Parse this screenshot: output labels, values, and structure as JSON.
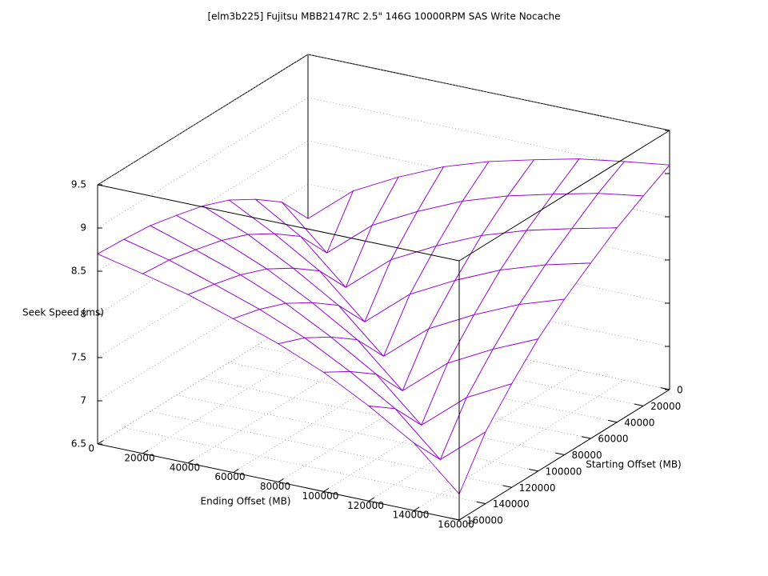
{
  "chart_data": {
    "type": "surface",
    "title": "[elm3b225] Fujitsu MBB2147RC 2.5\" 146G 10000RPM SAS Write Nocache",
    "xlabel": "Ending Offset (MB)",
    "ylabel": "Starting Offset (MB)",
    "zlabel": "Seek Speed (ms)",
    "x": [
      0,
      20000,
      40000,
      60000,
      80000,
      100000,
      120000,
      140000,
      160000
    ],
    "y": [
      0,
      20000,
      40000,
      60000,
      80000,
      100000,
      120000,
      140000,
      160000
    ],
    "z": [
      [
        7.6,
        8.03,
        8.3,
        8.53,
        8.7,
        8.83,
        8.95,
        9.03,
        9.1
      ],
      [
        7.98,
        7.5,
        7.93,
        8.2,
        8.43,
        8.6,
        8.73,
        8.85,
        8.93
      ],
      [
        8.2,
        7.88,
        7.4,
        7.83,
        8.1,
        8.33,
        8.5,
        8.63,
        8.75
      ],
      [
        8.38,
        8.1,
        7.78,
        7.3,
        7.73,
        8.0,
        8.23,
        8.4,
        8.53
      ],
      [
        8.5,
        8.28,
        8.0,
        7.68,
        7.2,
        7.63,
        7.9,
        8.13,
        8.3
      ],
      [
        8.58,
        8.4,
        8.18,
        7.9,
        7.58,
        7.1,
        7.53,
        7.8,
        8.03
      ],
      [
        8.65,
        8.48,
        8.3,
        8.08,
        7.8,
        7.48,
        7.0,
        7.43,
        7.7
      ],
      [
        8.68,
        8.55,
        8.38,
        8.2,
        7.98,
        7.7,
        7.38,
        6.9,
        7.33
      ],
      [
        8.7,
        8.58,
        8.45,
        8.28,
        8.1,
        7.88,
        7.6,
        7.28,
        6.8
      ]
    ],
    "xlim": [
      0,
      160000
    ],
    "ylim": [
      0,
      160000
    ],
    "zlim": [
      6.5,
      9.5
    ],
    "xticks": [
      0,
      20000,
      40000,
      60000,
      80000,
      100000,
      120000,
      140000,
      160000
    ],
    "yticks": [
      0,
      20000,
      40000,
      60000,
      80000,
      100000,
      120000,
      140000,
      160000
    ],
    "zticks": [
      6.5,
      7,
      7.5,
      8,
      8.5,
      9,
      9.5
    ],
    "color": "#9400d3",
    "grid": true
  }
}
